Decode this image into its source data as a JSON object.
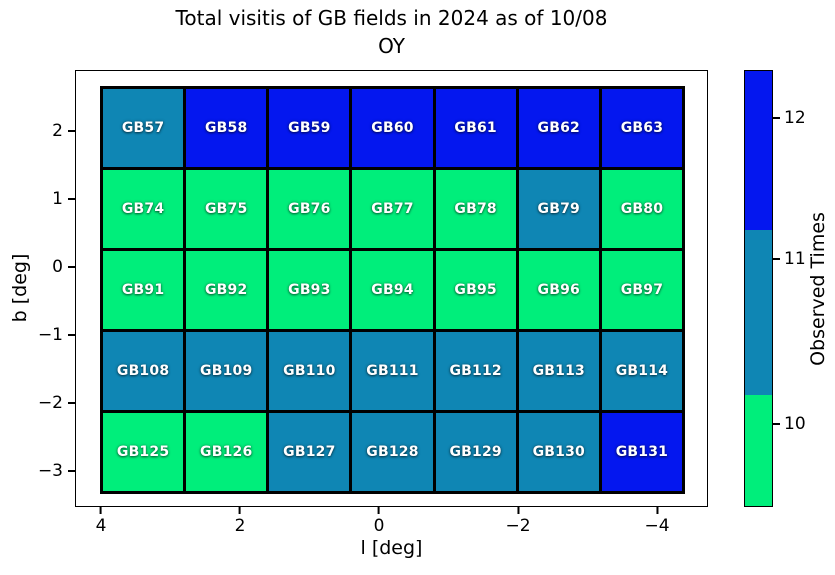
{
  "chart_data": {
    "type": "heatmap",
    "title_line1": "Total visitis of GB fields in 2024 as of 10/08",
    "title_line2": "OY",
    "xlabel": "l [deg]",
    "ylabel": "b [deg]",
    "x_axis_inverted": true,
    "x_tick_labels": [
      "4",
      "2",
      "0",
      "−2",
      "−4"
    ],
    "y_tick_labels": [
      "2",
      "1",
      "0",
      "−1",
      "−2",
      "−3"
    ],
    "colorbar": {
      "label": "Observed Times",
      "tick_labels": [
        "12",
        "11",
        "10"
      ],
      "segments_top_to_bottom": [
        "12",
        "11",
        "10"
      ]
    },
    "value_colors": {
      "10": "#00ee7b",
      "11": "#0f86b4",
      "12": "#0417ef"
    },
    "rows": [
      {
        "cells": [
          {
            "label": "GB57",
            "visits": 11
          },
          {
            "label": "GB58",
            "visits": 12
          },
          {
            "label": "GB59",
            "visits": 12
          },
          {
            "label": "GB60",
            "visits": 12
          },
          {
            "label": "GB61",
            "visits": 12
          },
          {
            "label": "GB62",
            "visits": 12
          },
          {
            "label": "GB63",
            "visits": 12
          }
        ]
      },
      {
        "cells": [
          {
            "label": "GB74",
            "visits": 10
          },
          {
            "label": "GB75",
            "visits": 10
          },
          {
            "label": "GB76",
            "visits": 10
          },
          {
            "label": "GB77",
            "visits": 10
          },
          {
            "label": "GB78",
            "visits": 10
          },
          {
            "label": "GB79",
            "visits": 11
          },
          {
            "label": "GB80",
            "visits": 10
          }
        ]
      },
      {
        "cells": [
          {
            "label": "GB91",
            "visits": 10
          },
          {
            "label": "GB92",
            "visits": 10
          },
          {
            "label": "GB93",
            "visits": 10
          },
          {
            "label": "GB94",
            "visits": 10
          },
          {
            "label": "GB95",
            "visits": 10
          },
          {
            "label": "GB96",
            "visits": 10
          },
          {
            "label": "GB97",
            "visits": 10
          }
        ]
      },
      {
        "cells": [
          {
            "label": "GB108",
            "visits": 11
          },
          {
            "label": "GB109",
            "visits": 11
          },
          {
            "label": "GB110",
            "visits": 11
          },
          {
            "label": "GB111",
            "visits": 11
          },
          {
            "label": "GB112",
            "visits": 11
          },
          {
            "label": "GB113",
            "visits": 11
          },
          {
            "label": "GB114",
            "visits": 11
          }
        ]
      },
      {
        "cells": [
          {
            "label": "GB125",
            "visits": 10
          },
          {
            "label": "GB126",
            "visits": 10
          },
          {
            "label": "GB127",
            "visits": 11
          },
          {
            "label": "GB128",
            "visits": 11
          },
          {
            "label": "GB129",
            "visits": 11
          },
          {
            "label": "GB130",
            "visits": 11
          },
          {
            "label": "GB131",
            "visits": 12
          }
        ]
      }
    ]
  }
}
